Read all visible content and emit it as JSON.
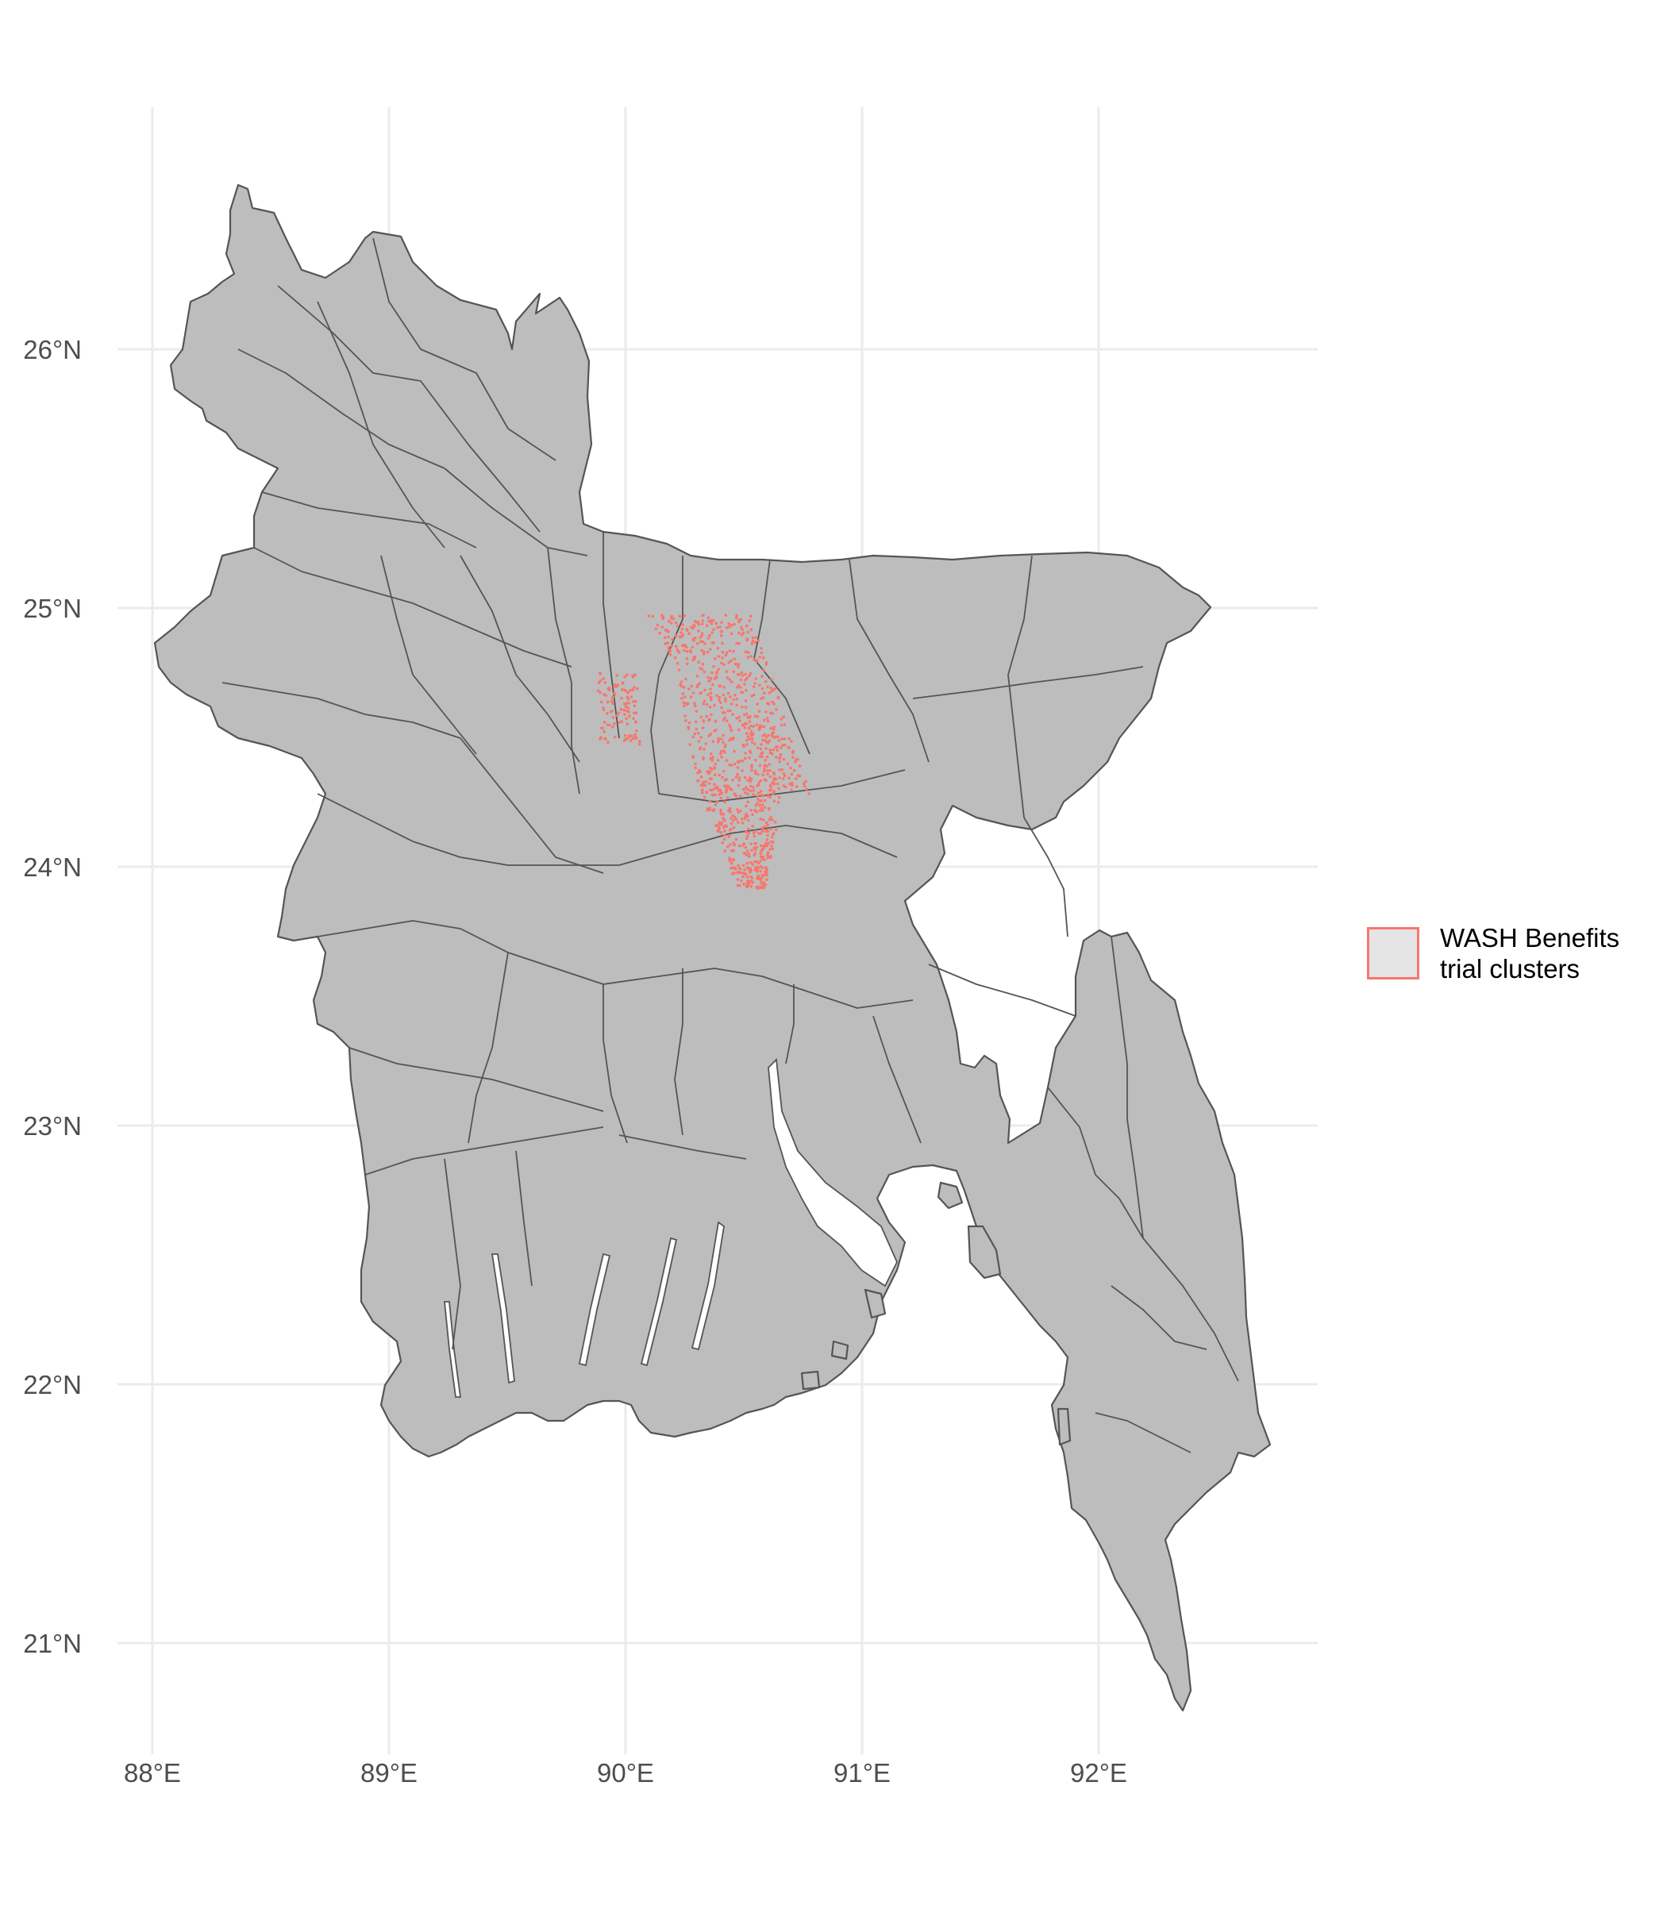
{
  "map": {
    "x_ticks": [
      {
        "value": 88,
        "label": "88°E"
      },
      {
        "value": 89,
        "label": "89°E"
      },
      {
        "value": 90,
        "label": "90°E"
      },
      {
        "value": 91,
        "label": "91°E"
      },
      {
        "value": 92,
        "label": "92°E"
      }
    ],
    "y_ticks": [
      {
        "value": 21,
        "label": "21°N"
      },
      {
        "value": 22,
        "label": "22°N"
      },
      {
        "value": 23,
        "label": "23°N"
      },
      {
        "value": 24,
        "label": "24°N"
      },
      {
        "value": 25,
        "label": "25°N"
      },
      {
        "value": 26,
        "label": "26°N"
      }
    ],
    "land_color": "#bdbdbd",
    "border_color": "#555555",
    "cluster_color": "#f8766d"
  },
  "legend": {
    "line1": "WASH Benefits",
    "line2": "trial clusters",
    "fill_color": "#e5e5e5",
    "border_color": "#f8766d"
  }
}
